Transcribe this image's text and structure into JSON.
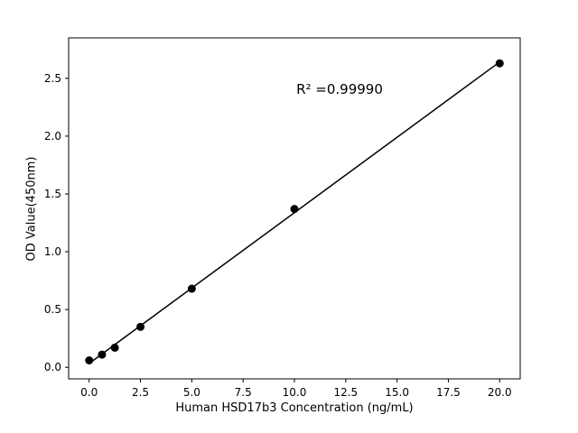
{
  "figure": {
    "background": "#ffffff",
    "axis_color": "#000000"
  },
  "chart_data": {
    "type": "scatter",
    "title": "",
    "xlabel": "Human HSD17b3 Concentration (ng/mL)",
    "ylabel": "OD Value(450nm)",
    "x": [
      0,
      0.625,
      1.25,
      2.5,
      5,
      10,
      20
    ],
    "y": [
      0.06,
      0.11,
      0.17,
      0.35,
      0.68,
      1.37,
      2.63
    ],
    "xlim": [
      -1,
      21
    ],
    "ylim": [
      -0.1,
      2.85
    ],
    "x_ticks": [
      0,
      2.5,
      5,
      7.5,
      10,
      12.5,
      15,
      17.5,
      20
    ],
    "y_ticks": [
      0,
      0.5,
      1,
      1.5,
      2,
      2.5
    ],
    "tick_decimals": 1,
    "grid": false,
    "legend_position": "none",
    "fit_line": true,
    "marker_color": "#000000",
    "line_color": "#000000",
    "annotation": {
      "text": "R² =0.99990"
    }
  }
}
